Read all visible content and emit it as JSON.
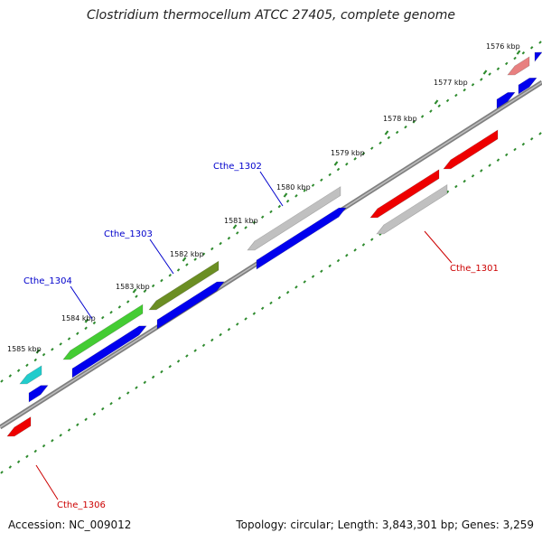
{
  "title": "Clostridium thermocellum ATCC 27405, complete genome",
  "accession": "Accession: NC_009012",
  "summary": "Topology: circular; Length: 3,843,301 bp; Genes: 3,259",
  "ticks": [
    {
      "label": "1576 kbp"
    },
    {
      "label": "1577 kbp"
    },
    {
      "label": "1578 kbp"
    },
    {
      "label": "1579 kbp"
    },
    {
      "label": "1580 kbp"
    },
    {
      "label": "1581 kbp"
    },
    {
      "label": "1582 kbp"
    },
    {
      "label": "1583 kbp"
    },
    {
      "label": "1584 kbp"
    },
    {
      "label": "1585 kbp"
    }
  ],
  "gene_labels": [
    {
      "label": "Cthe_1302",
      "color": "#0000cc"
    },
    {
      "label": "Cthe_1303",
      "color": "#0000cc"
    },
    {
      "label": "Cthe_1304",
      "color": "#0000cc"
    },
    {
      "label": "Cthe_1301",
      "color": "#cc0000"
    },
    {
      "label": "Cthe_1306",
      "color": "#cc0000"
    }
  ],
  "colors": {
    "forward_cds": "#0000ee",
    "reverse_cds": "#ee0000",
    "backbone": "#808080",
    "tick": "#2e8b2e",
    "gray_feature": "#c0c0c0",
    "green_feature": "#44cc33",
    "olive_feature": "#6b8e23",
    "cyan_feature": "#22cccc",
    "pink_feature": "#e88080"
  }
}
